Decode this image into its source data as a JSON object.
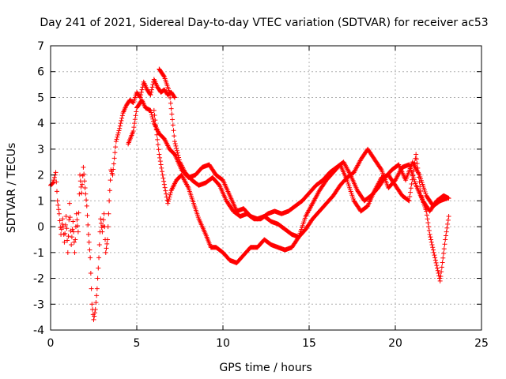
{
  "chart_data": {
    "type": "scatter",
    "title": "Day 241 of 2021, Sidereal Day-to-day VTEC variation (SDTVAR) for receiver ac53",
    "xlabel": "GPS time / hours",
    "ylabel": "SDTVAR / TECUs",
    "xlim": [
      0,
      25
    ],
    "ylim": [
      -4,
      7
    ],
    "xticks": [
      0,
      5,
      10,
      15,
      20,
      25
    ],
    "yticks": [
      -4,
      -3,
      -2,
      -1,
      0,
      1,
      2,
      3,
      4,
      5,
      6,
      7
    ],
    "grid": true,
    "marker": "+",
    "color": "#ff0000",
    "series": [
      {
        "name": "trace-a",
        "x": [
          0.0,
          0.15,
          0.3,
          0.4,
          0.5,
          0.6,
          0.7,
          0.8,
          0.9,
          1.0,
          1.1,
          1.2,
          1.3,
          1.4,
          1.5,
          1.6,
          1.7,
          1.8,
          1.9,
          2.0,
          2.1,
          2.2,
          2.3,
          2.4,
          2.5,
          2.6,
          2.7,
          2.8,
          2.9,
          3.0,
          3.1,
          3.2,
          3.3,
          3.4,
          3.5,
          3.6,
          3.8,
          4.0,
          4.2,
          4.4,
          4.6,
          4.8,
          5.0,
          5.2,
          5.4,
          5.6,
          5.8,
          6.0,
          6.2,
          6.4,
          6.6,
          6.8,
          7.0,
          7.2
        ],
        "y": [
          1.6,
          1.7,
          2.1,
          1.0,
          0.5,
          -0.3,
          0.3,
          -0.6,
          0.4,
          -1.0,
          0.9,
          -0.7,
          0.2,
          -1.0,
          0.5,
          -0.2,
          2.0,
          1.3,
          2.3,
          1.5,
          0.8,
          -0.3,
          -1.2,
          -3.0,
          -3.6,
          -3.2,
          -2.4,
          -1.2,
          0.3,
          -0.2,
          0.5,
          -1.0,
          -0.5,
          1.0,
          2.2,
          2.0,
          3.3,
          3.8,
          4.4,
          4.7,
          4.9,
          4.8,
          5.2,
          5.0,
          5.6,
          5.3,
          5.1,
          5.7,
          5.4,
          5.2,
          5.3,
          5.1,
          5.2,
          5.0
        ]
      },
      {
        "name": "trace-b",
        "x": [
          4.5,
          4.8,
          5.0,
          5.3,
          5.5,
          5.8,
          6.0,
          6.3,
          6.6,
          6.9,
          7.2,
          7.6,
          8.0,
          8.4,
          8.8,
          9.2,
          9.6,
          10.0,
          10.4,
          10.8,
          11.2,
          11.6,
          12.0,
          12.4,
          12.8,
          13.2,
          13.6,
          14.0,
          14.4,
          14.8,
          15.2,
          15.6,
          16.0,
          16.4,
          16.8,
          17.2,
          17.6,
          18.0,
          18.4,
          18.8,
          19.2,
          19.6,
          20.0,
          20.4,
          20.8,
          21.2,
          21.6,
          22.0,
          22.4,
          22.8,
          23.1
        ],
        "y": [
          3.2,
          3.7,
          4.6,
          4.9,
          4.6,
          4.5,
          4.0,
          3.6,
          3.4,
          3.0,
          2.8,
          2.2,
          1.9,
          2.0,
          2.3,
          2.4,
          2.0,
          1.8,
          1.2,
          0.6,
          0.7,
          0.4,
          0.3,
          0.4,
          0.2,
          0.1,
          -0.1,
          -0.3,
          -0.4,
          -0.1,
          0.3,
          0.6,
          0.9,
          1.2,
          1.6,
          1.9,
          2.1,
          2.6,
          3.0,
          2.6,
          2.2,
          1.5,
          1.8,
          2.3,
          2.4,
          1.6,
          1.0,
          0.6,
          1.0,
          1.2,
          1.1
        ]
      },
      {
        "name": "trace-c",
        "x": [
          6.0,
          6.3,
          6.5,
          6.8,
          7.0,
          7.3,
          7.6,
          8.0,
          8.3,
          8.6,
          9.0,
          9.3,
          9.6,
          10.0,
          10.4,
          10.8,
          11.2,
          11.6,
          12.0,
          12.4,
          12.8,
          13.2,
          13.6,
          14.0,
          14.4,
          14.8,
          15.2,
          15.6,
          16.0,
          16.4,
          16.8,
          17.2,
          17.6,
          18.0,
          18.4,
          18.8,
          19.2,
          19.6,
          20.0,
          20.4,
          20.8,
          21.2,
          21.5,
          21.8,
          22.0,
          22.3,
          22.6,
          22.9,
          23.1
        ],
        "y": [
          4.5,
          2.8,
          2.0,
          0.9,
          1.4,
          1.8,
          2.0,
          1.5,
          0.9,
          0.3,
          -0.3,
          -0.8,
          -0.8,
          -1.0,
          -1.3,
          -1.4,
          -1.1,
          -0.8,
          -0.8,
          -0.5,
          -0.7,
          -0.8,
          -0.9,
          -0.8,
          -0.4,
          0.4,
          0.9,
          1.4,
          1.8,
          2.1,
          2.4,
          1.8,
          1.0,
          0.6,
          0.8,
          1.4,
          1.9,
          2.0,
          1.6,
          1.2,
          1.0,
          2.8,
          1.2,
          0.6,
          -0.3,
          -1.2,
          -2.1,
          -0.5,
          0.4
        ]
      },
      {
        "name": "trace-d",
        "x": [
          6.3,
          6.6,
          6.9,
          7.2,
          7.5,
          7.8,
          8.2,
          8.6,
          9.0,
          9.4,
          9.8,
          10.2,
          10.6,
          11.0,
          11.4,
          11.8,
          12.2,
          12.6,
          13.0,
          13.4,
          13.8,
          14.2,
          14.6,
          15.0,
          15.4,
          15.8,
          16.2,
          16.6,
          17.0,
          17.4,
          17.8,
          18.2,
          18.6,
          19.0,
          19.4,
          19.8,
          20.2,
          20.6,
          21.0,
          21.4,
          21.8,
          22.2,
          22.6,
          23.0
        ],
        "y": [
          6.1,
          5.8,
          5.2,
          3.3,
          2.5,
          2.1,
          1.8,
          1.6,
          1.7,
          1.9,
          1.6,
          1.0,
          0.6,
          0.4,
          0.5,
          0.3,
          0.3,
          0.5,
          0.6,
          0.5,
          0.6,
          0.8,
          1.0,
          1.3,
          1.6,
          1.8,
          2.1,
          2.3,
          2.5,
          2.0,
          1.4,
          1.0,
          1.2,
          1.5,
          1.9,
          2.2,
          2.4,
          1.8,
          2.5,
          2.0,
          1.2,
          0.8,
          1.0,
          1.1
        ]
      }
    ]
  }
}
